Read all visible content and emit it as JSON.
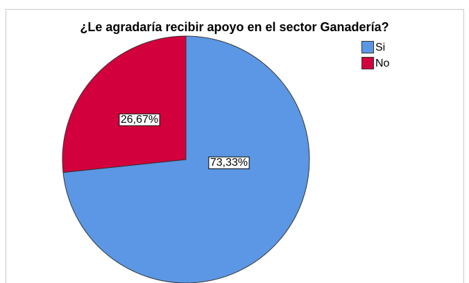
{
  "chart_data": {
    "type": "pie",
    "title": "¿Le agradaría recibir apoyo en el sector Ganadería?",
    "categories": [
      "Si",
      "No"
    ],
    "values": [
      73.33,
      26.67
    ],
    "value_labels": [
      "73,33%",
      "26,67%"
    ],
    "colors": [
      "#5b97e4",
      "#d2003c"
    ],
    "legend": "upper right"
  }
}
